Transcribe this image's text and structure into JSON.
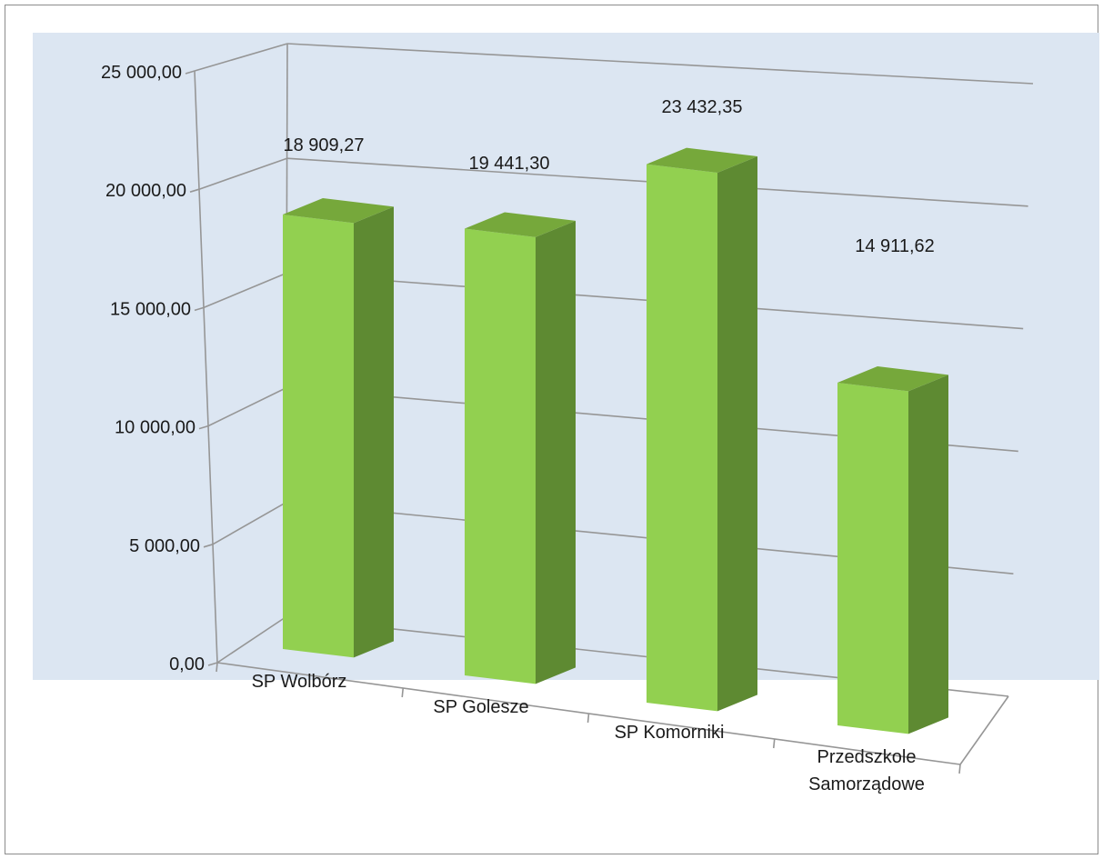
{
  "chart_data": {
    "type": "bar",
    "style": "3d-column",
    "categories": [
      [
        "SP Wolbórz"
      ],
      [
        "SP Golesze"
      ],
      [
        "SP Komorniki"
      ],
      [
        "Przedszkole",
        "Samorządowe"
      ]
    ],
    "values": [
      18909.27,
      19441.3,
      23432.35,
      14911.62
    ],
    "value_labels": [
      "18 909,27",
      "19 441,30",
      "23 432,35",
      "14 911,62"
    ],
    "y_ticks": [
      "0,00",
      "5 000,00",
      "10 000,00",
      "15 000,00",
      "20 000,00",
      "25 000,00"
    ],
    "ylim": [
      0,
      25000
    ],
    "grid": true,
    "legend": "none",
    "colors": {
      "plot_background": "#dce6f2",
      "bar_front": "#92d050",
      "bar_side": "#5e8a32",
      "bar_top": "#76a83b",
      "grid": "#969696"
    }
  }
}
